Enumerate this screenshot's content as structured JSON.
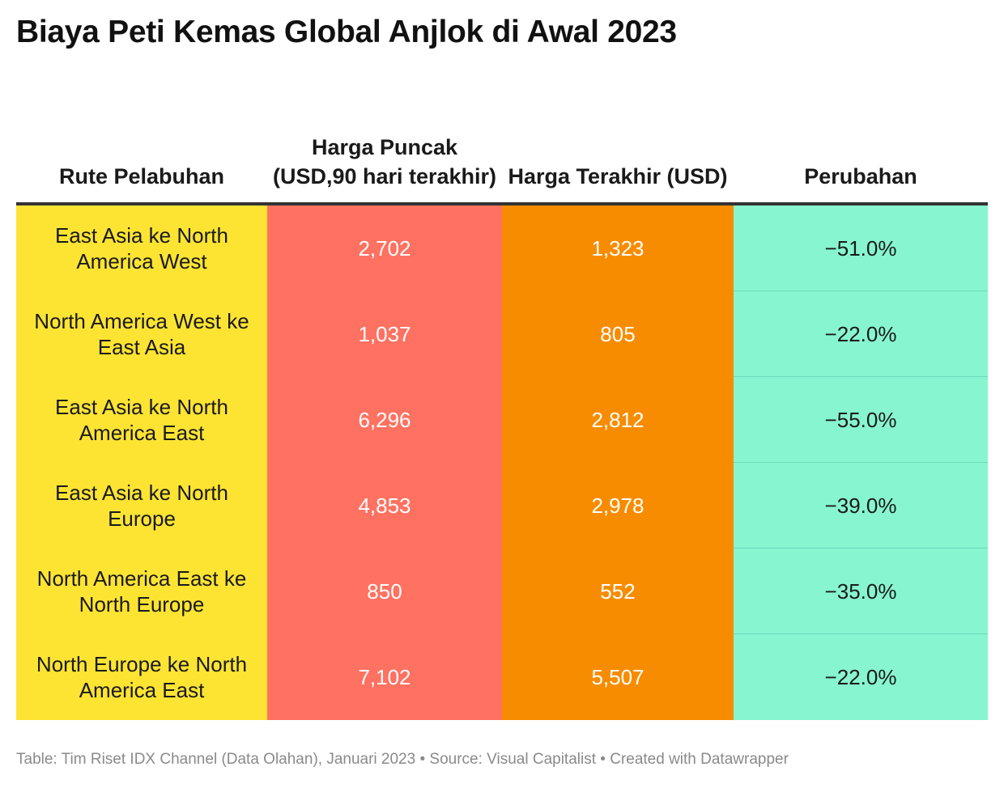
{
  "title": "Biaya Peti Kemas Global Anjlok di Awal 2023",
  "chart_data": {
    "type": "table",
    "title": "Biaya Peti Kemas Global Anjlok di Awal 2023",
    "columns": [
      "Rute Pelabuhan",
      "Harga Puncak (USD,90 hari terakhir)",
      "Harga Terakhir (USD)",
      "Perubahan"
    ],
    "column_colors": [
      "#fde433",
      "#ff7161",
      "#f88c00",
      "#87f5d0"
    ],
    "rows": [
      {
        "route": "East Asia ke North America West",
        "peak": "2,702",
        "latest": "1,323",
        "change": "−51.0%"
      },
      {
        "route": "North America West ke East Asia",
        "peak": "1,037",
        "latest": "805",
        "change": "−22.0%"
      },
      {
        "route": "East Asia ke North America East",
        "peak": "6,296",
        "latest": "2,812",
        "change": "−55.0%"
      },
      {
        "route": "East Asia ke North Europe",
        "peak": "4,853",
        "latest": "2,978",
        "change": "−39.0%"
      },
      {
        "route": "North America East ke North Europe",
        "peak": "850",
        "latest": "552",
        "change": "−35.0%"
      },
      {
        "route": "North Europe ke North America East",
        "peak": "7,102",
        "latest": "5,507",
        "change": "−22.0%"
      }
    ]
  },
  "footer": "Table: Tim Riset IDX Channel (Data Olahan), Januari 2023 • Source: Visual Capitalist • Created with Datawrapper"
}
